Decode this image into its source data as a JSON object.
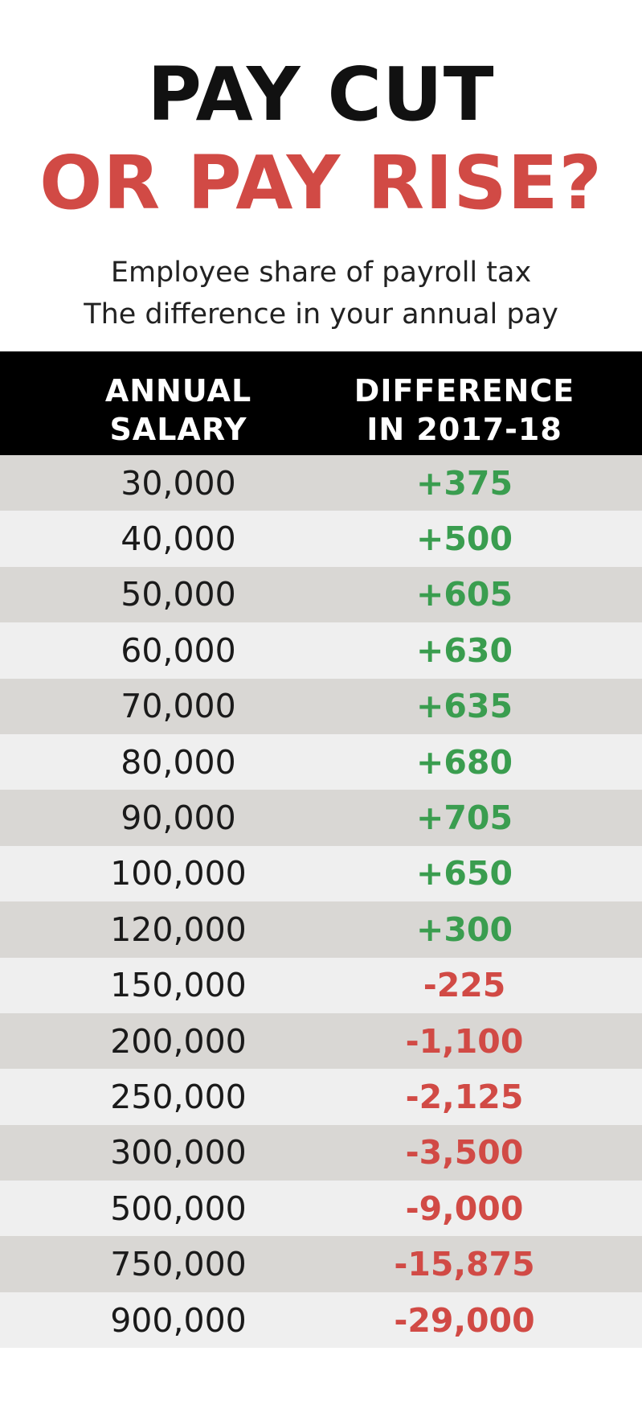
{
  "headline": {
    "line1": "PAY CUT",
    "line2": "OR PAY RISE?"
  },
  "subtitle": {
    "line1": "Employee share of payroll tax",
    "line2": "The difference in your annual pay"
  },
  "colors": {
    "positive": "#3a9d4f",
    "negative": "#d14a45",
    "header_bg": "#000000",
    "row_dark": "#d9d7d4",
    "row_light": "#efefef"
  },
  "chart_data": {
    "type": "table",
    "columns": [
      "ANNUAL\nSALARY",
      "DIFFERENCE\nIN 2017-18"
    ],
    "rows": [
      [
        "30,000",
        "+375"
      ],
      [
        "40,000",
        "+500"
      ],
      [
        "50,000",
        "+605"
      ],
      [
        "60,000",
        "+630"
      ],
      [
        "70,000",
        "+635"
      ],
      [
        "80,000",
        "+680"
      ],
      [
        "90,000",
        "+705"
      ],
      [
        "100,000",
        "+650"
      ],
      [
        "120,000",
        "+300"
      ],
      [
        "150,000",
        "-225"
      ],
      [
        "200,000",
        "-1,100"
      ],
      [
        "250,000",
        "-2,125"
      ],
      [
        "300,000",
        "-3,500"
      ],
      [
        "500,000",
        "-9,000"
      ],
      [
        "750,000",
        "-15,875"
      ],
      [
        "900,000",
        "-29,000"
      ]
    ]
  }
}
